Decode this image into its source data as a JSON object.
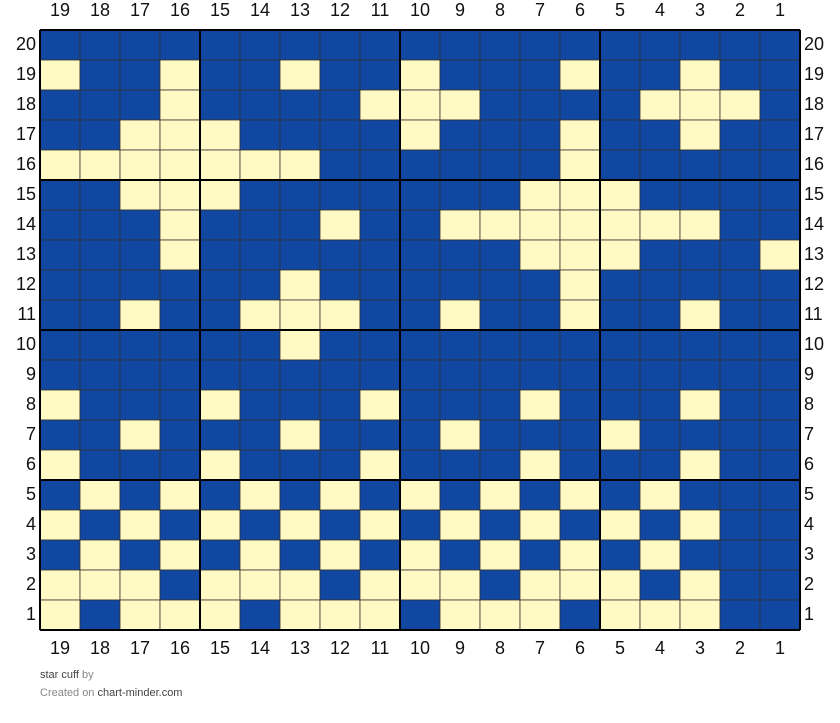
{
  "grid": {
    "colors": [
      "#0f47a1",
      "#fff9c4"
    ],
    "columns": [
      19,
      18,
      17,
      16,
      15,
      14,
      13,
      12,
      11,
      10,
      9,
      8,
      7,
      6,
      5,
      4,
      3,
      2,
      1
    ],
    "rows": [
      {
        "label": 20,
        "cells": [
          0,
          0,
          0,
          0,
          0,
          0,
          0,
          0,
          0,
          0,
          0,
          0,
          0,
          0,
          0,
          0,
          0,
          0,
          0
        ]
      },
      {
        "label": 19,
        "cells": [
          1,
          0,
          0,
          1,
          0,
          0,
          1,
          0,
          0,
          1,
          0,
          0,
          0,
          1,
          0,
          0,
          1,
          0,
          0
        ]
      },
      {
        "label": 18,
        "cells": [
          0,
          0,
          0,
          1,
          0,
          0,
          0,
          0,
          1,
          1,
          1,
          0,
          0,
          0,
          0,
          1,
          1,
          1,
          0
        ]
      },
      {
        "label": 17,
        "cells": [
          0,
          0,
          1,
          1,
          1,
          0,
          0,
          0,
          0,
          1,
          0,
          0,
          0,
          1,
          0,
          0,
          1,
          0,
          0
        ]
      },
      {
        "label": 16,
        "cells": [
          1,
          1,
          1,
          1,
          1,
          1,
          1,
          0,
          0,
          0,
          0,
          0,
          0,
          1,
          0,
          0,
          0,
          0,
          0
        ]
      },
      {
        "label": 15,
        "cells": [
          0,
          0,
          1,
          1,
          1,
          0,
          0,
          0,
          0,
          0,
          0,
          0,
          1,
          1,
          1,
          0,
          0,
          0,
          0
        ]
      },
      {
        "label": 14,
        "cells": [
          0,
          0,
          0,
          1,
          0,
          0,
          0,
          1,
          0,
          0,
          1,
          1,
          1,
          1,
          1,
          1,
          1,
          0,
          0
        ]
      },
      {
        "label": 13,
        "cells": [
          0,
          0,
          0,
          1,
          0,
          0,
          0,
          0,
          0,
          0,
          0,
          0,
          1,
          1,
          1,
          0,
          0,
          0,
          1
        ]
      },
      {
        "label": 12,
        "cells": [
          0,
          0,
          0,
          0,
          0,
          0,
          1,
          0,
          0,
          0,
          0,
          0,
          0,
          1,
          0,
          0,
          0,
          0,
          0
        ]
      },
      {
        "label": 11,
        "cells": [
          0,
          0,
          1,
          0,
          0,
          1,
          1,
          1,
          0,
          0,
          1,
          0,
          0,
          1,
          0,
          0,
          1,
          0,
          0
        ]
      },
      {
        "label": 10,
        "cells": [
          0,
          0,
          0,
          0,
          0,
          0,
          1,
          0,
          0,
          0,
          0,
          0,
          0,
          0,
          0,
          0,
          0,
          0,
          0
        ]
      },
      {
        "label": 9,
        "cells": [
          0,
          0,
          0,
          0,
          0,
          0,
          0,
          0,
          0,
          0,
          0,
          0,
          0,
          0,
          0,
          0,
          0,
          0,
          0
        ]
      },
      {
        "label": 8,
        "cells": [
          1,
          0,
          0,
          0,
          1,
          0,
          0,
          0,
          1,
          0,
          0,
          0,
          1,
          0,
          0,
          0,
          1,
          0,
          0
        ]
      },
      {
        "label": 7,
        "cells": [
          0,
          0,
          1,
          0,
          0,
          0,
          1,
          0,
          0,
          0,
          1,
          0,
          0,
          0,
          1,
          0,
          0,
          0,
          0
        ]
      },
      {
        "label": 6,
        "cells": [
          1,
          0,
          0,
          0,
          1,
          0,
          0,
          0,
          1,
          0,
          0,
          0,
          1,
          0,
          0,
          0,
          1,
          0,
          0
        ]
      },
      {
        "label": 5,
        "cells": [
          0,
          1,
          0,
          1,
          0,
          1,
          0,
          1,
          0,
          1,
          0,
          1,
          0,
          1,
          0,
          1,
          0,
          0,
          0
        ]
      },
      {
        "label": 4,
        "cells": [
          1,
          0,
          1,
          0,
          1,
          0,
          1,
          0,
          1,
          0,
          1,
          0,
          1,
          0,
          1,
          0,
          1,
          0,
          0
        ]
      },
      {
        "label": 3,
        "cells": [
          0,
          1,
          0,
          1,
          0,
          1,
          0,
          1,
          0,
          1,
          0,
          1,
          0,
          1,
          0,
          1,
          0,
          0,
          0
        ]
      },
      {
        "label": 2,
        "cells": [
          1,
          1,
          1,
          0,
          1,
          1,
          1,
          0,
          1,
          1,
          1,
          0,
          1,
          1,
          1,
          0,
          1,
          0,
          0
        ]
      },
      {
        "label": 1,
        "cells": [
          1,
          0,
          1,
          1,
          1,
          0,
          1,
          1,
          1,
          0,
          1,
          1,
          1,
          0,
          1,
          1,
          1,
          0,
          0
        ]
      }
    ]
  },
  "footer": {
    "title": "star cuff",
    "by": "by",
    "created_on": "Created on",
    "site": "chart-minder.com"
  }
}
